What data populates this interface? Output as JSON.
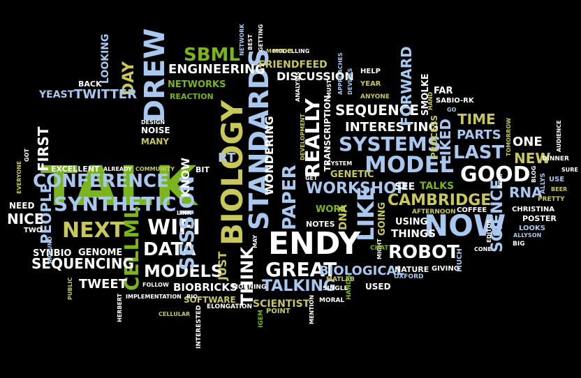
{
  "colors": {
    "background": "#000000",
    "green": "#7ab51d",
    "light_blue": "#a9c8f0",
    "white": "#ffffff",
    "olive": "#c8c85a"
  },
  "words": [
    {
      "id": "talk",
      "text": "TALK",
      "color": "#7ab51d"
    },
    {
      "id": "biology",
      "text": "BIOLOGY",
      "color": "#c8c85a"
    },
    {
      "id": "standards",
      "text": "STANDARDS",
      "color": "#a9c8f0"
    },
    {
      "id": "drew",
      "text": "DREW",
      "color": "#a9c8f0"
    },
    {
      "id": "endy",
      "text": "ENDY",
      "color": "#ffffff"
    },
    {
      "id": "now",
      "text": "NOW",
      "color": "#a9c8f0"
    },
    {
      "id": "model",
      "text": "MODEL",
      "color": "#a9c8f0"
    },
    {
      "id": "like",
      "text": "LIKE",
      "color": "#a9c8f0"
    },
    {
      "id": "synthetic",
      "text": "SYNTHETIC",
      "color": "#a9c8f0"
    },
    {
      "id": "conference",
      "text": "CONFERENCE",
      "color": "#a9c8f0"
    },
    {
      "id": "next",
      "text": "NEXT",
      "color": "#c8c85a"
    },
    {
      "id": "wifi",
      "text": "WIFI",
      "color": "#ffffff"
    },
    {
      "id": "data",
      "text": "DATA",
      "color": "#ffffff"
    },
    {
      "id": "systems",
      "text": "SYSTEMS",
      "color": "#a9c8f0"
    },
    {
      "id": "good",
      "text": "GOOD",
      "color": "#ffffff"
    },
    {
      "id": "robot",
      "text": "ROBOT",
      "color": "#ffffff"
    },
    {
      "id": "models",
      "text": "MODELS",
      "color": "#ffffff"
    },
    {
      "id": "great",
      "text": "GREAT",
      "color": "#ffffff"
    },
    {
      "id": "session",
      "text": "SESSION",
      "color": "#a9c8f0"
    },
    {
      "id": "cellml",
      "text": "CELLML",
      "color": "#7ab51d"
    },
    {
      "id": "paper",
      "text": "PAPER",
      "color": "#a9c8f0"
    },
    {
      "id": "really",
      "text": "REALLY",
      "color": "#ffffff"
    },
    {
      "id": "sbml",
      "text": "SBML",
      "color": "#7ab51d"
    },
    {
      "id": "engineering",
      "text": "ENGINEERING",
      "color": "#ffffff"
    },
    {
      "id": "workshop",
      "text": "WORKSHOP",
      "color": "#a9c8f0"
    },
    {
      "id": "sequencing",
      "text": "SEQUENCING",
      "color": "#ffffff"
    },
    {
      "id": "cambridge",
      "text": "CAMBRIDGE",
      "color": "#c8c85a"
    },
    {
      "id": "interesting",
      "text": "INTERESTING",
      "color": "#ffffff"
    },
    {
      "id": "sequence",
      "text": "SEQUENCE",
      "color": "#ffffff"
    },
    {
      "id": "talking",
      "text": "TALKING",
      "color": "#a9c8f0"
    },
    {
      "id": "biological",
      "text": "BIOLOGICAL",
      "color": "#a9c8f0"
    },
    {
      "id": "think",
      "text": "THINK",
      "color": "#ffffff"
    },
    {
      "id": "tweet",
      "text": "TWEET",
      "color": "#ffffff"
    },
    {
      "id": "time",
      "text": "TIME",
      "color": "#c8c85a"
    },
    {
      "id": "last",
      "text": "LAST",
      "color": "#a9c8f0"
    },
    {
      "id": "parts",
      "text": "PARTS",
      "color": "#a9c8f0"
    },
    {
      "id": "one",
      "text": "ONE",
      "color": "#ffffff"
    },
    {
      "id": "new",
      "text": "NEW",
      "color": "#c8c85a"
    },
    {
      "id": "rna",
      "text": "RNA",
      "color": "#a9c8f0"
    },
    {
      "id": "science",
      "text": "SCIENCE",
      "color": "#a9c8f0"
    },
    {
      "id": "liked",
      "text": "LIKED",
      "color": "#a9c8f0"
    },
    {
      "id": "forward",
      "text": "FORWARD",
      "color": "#a9c8f0"
    },
    {
      "id": "day",
      "text": "DAY",
      "color": "#c8c85a"
    },
    {
      "id": "twitter",
      "text": "TWITTER",
      "color": "#a9c8f0"
    },
    {
      "id": "yeast",
      "text": "YEAST",
      "color": "#a9c8f0"
    },
    {
      "id": "people",
      "text": "PEOPLE",
      "color": "#a9c8f0"
    },
    {
      "id": "first",
      "text": "FIRST",
      "color": "#ffffff"
    },
    {
      "id": "nice",
      "text": "NICE",
      "color": "#ffffff"
    },
    {
      "id": "wondering",
      "text": "WONDERING",
      "color": "#ffffff"
    },
    {
      "id": "discussion",
      "text": "DISCUSSION",
      "color": "#ffffff"
    },
    {
      "id": "friendfeed",
      "text": "FRIENDFEED",
      "color": "#c8c85a"
    },
    {
      "id": "networks",
      "text": "NETWORKS",
      "color": "#7ab51d"
    },
    {
      "id": "excellent",
      "text": "EXCELLENT",
      "color": "#ffffff"
    },
    {
      "id": "genome",
      "text": "GENOME",
      "color": "#ffffff"
    },
    {
      "id": "synbio",
      "text": "SYNBIO",
      "color": "#ffffff"
    },
    {
      "id": "scientist",
      "text": "SCIENTIST",
      "color": "#c8c85a"
    },
    {
      "id": "software",
      "text": "SOFTWARE",
      "color": "#c8c85a"
    },
    {
      "id": "biobricks",
      "text": "BIOBRICKS",
      "color": "#ffffff"
    },
    {
      "id": "just",
      "text": "JUST",
      "color": "#c8c85a"
    },
    {
      "id": "know",
      "text": "KNOW",
      "color": "#ffffff"
    },
    {
      "id": "rt",
      "text": "RT",
      "color": "#a9c8f0"
    },
    {
      "id": "see",
      "text": "SEE",
      "color": "#ffffff"
    },
    {
      "id": "talks",
      "text": "TALKS",
      "color": "#7ab51d"
    },
    {
      "id": "genetic",
      "text": "GENETIC",
      "color": "#c8c85a"
    },
    {
      "id": "work",
      "text": "WORK",
      "color": "#7ab51d"
    },
    {
      "id": "using",
      "text": "USING",
      "color": "#ffffff"
    },
    {
      "id": "things",
      "text": "THINGS",
      "color": "#ffffff"
    },
    {
      "id": "going",
      "text": "GOING",
      "color": "#c8c85a"
    },
    {
      "id": "dna",
      "text": "DNA",
      "color": "#c8c85a"
    },
    {
      "id": "notes",
      "text": "NOTES",
      "color": "#ffffff"
    },
    {
      "id": "transcription",
      "text": "TRANSCRIPTION",
      "color": "#ffffff"
    },
    {
      "id": "process",
      "text": "PROCESS",
      "color": "#c8c85a"
    },
    {
      "id": "smolke",
      "text": "SMOLKE",
      "color": "#ffffff"
    },
    {
      "id": "far",
      "text": "FAR",
      "color": "#ffffff"
    },
    {
      "id": "looking",
      "text": "LOOKING",
      "color": "#a9c8f0"
    },
    {
      "id": "back",
      "text": "BACK",
      "color": "#ffffff"
    },
    {
      "id": "reaction",
      "text": "REACTION",
      "color": "#7ab51d"
    },
    {
      "id": "noise",
      "text": "NOISE",
      "color": "#ffffff"
    },
    {
      "id": "many",
      "text": "MANY",
      "color": "#c8c85a"
    },
    {
      "id": "design",
      "text": "DESIGN",
      "color": "#ffffff"
    },
    {
      "id": "bit",
      "text": "BIT",
      "color": "#ffffff"
    },
    {
      "id": "community",
      "text": "COMMUNITY",
      "color": "#c8c85a"
    },
    {
      "id": "already",
      "text": "ALREADY",
      "color": "#ffffff"
    },
    {
      "id": "need",
      "text": "NEED",
      "color": "#ffffff"
    },
    {
      "id": "two",
      "text": "TWO",
      "color": "#ffffff"
    },
    {
      "id": "public",
      "text": "PUBLIC",
      "color": "#c8c85a"
    },
    {
      "id": "follow",
      "text": "FOLLOW",
      "color": "#ffffff"
    },
    {
      "id": "bio",
      "text": "BIO",
      "color": "#ffffff"
    },
    {
      "id": "implementation",
      "text": "IMPLEMENTATION",
      "color": "#ffffff"
    },
    {
      "id": "herbert",
      "text": "HERBERT",
      "color": "#ffffff"
    },
    {
      "id": "cellular",
      "text": "CELLULAR",
      "color": "#c8c85a"
    },
    {
      "id": "interested",
      "text": "INTERESTED",
      "color": "#ffffff"
    },
    {
      "id": "elongation",
      "text": "ELONGATION",
      "color": "#ffffff"
    },
    {
      "id": "morning",
      "text": "MORNING",
      "color": "#ffffff"
    },
    {
      "id": "link",
      "text": "LINK",
      "color": "#ffffff"
    },
    {
      "id": "may",
      "text": "MAY",
      "color": "#ffffff"
    },
    {
      "id": "igem",
      "text": "IGEM",
      "color": "#7ab51d"
    },
    {
      "id": "point",
      "text": "POINT",
      "color": "#c8c85a"
    },
    {
      "id": "mention",
      "text": "MENTION",
      "color": "#ffffff"
    },
    {
      "id": "moral",
      "text": "MORAL",
      "color": "#ffffff"
    },
    {
      "id": "single",
      "text": "SINGLE",
      "color": "#ffffff"
    },
    {
      "id": "matlab",
      "text": "MATLAB",
      "color": "#c8c85a"
    },
    {
      "id": "hands",
      "text": "HANDS",
      "color": "#7ab51d"
    },
    {
      "id": "used",
      "text": "USED",
      "color": "#ffffff"
    },
    {
      "id": "oxford",
      "text": "OXFORD",
      "color": "#a9c8f0"
    },
    {
      "id": "nature",
      "text": "NATURE",
      "color": "#ffffff"
    },
    {
      "id": "giving",
      "text": "GIVING",
      "color": "#ffffff"
    },
    {
      "id": "much",
      "text": "MUCH",
      "color": "#a9c8f0"
    },
    {
      "id": "might",
      "text": "MIGHT",
      "color": "#ffffff"
    },
    {
      "id": "chat",
      "text": "CHAT",
      "color": "#7ab51d"
    },
    {
      "id": "afternoon",
      "text": "AFTERNOON",
      "color": "#c8c85a"
    },
    {
      "id": "coffee",
      "text": "COFFEE",
      "color": "#ffffff"
    },
    {
      "id": "editor",
      "text": "EDITOR",
      "color": "#ffffff"
    },
    {
      "id": "cone",
      "text": "CONE",
      "color": "#ffffff"
    },
    {
      "id": "poster",
      "text": "POSTER",
      "color": "#ffffff"
    },
    {
      "id": "looks",
      "text": "LOOKS",
      "color": "#a9c8f0"
    },
    {
      "id": "allyson",
      "text": "ALLYSON",
      "color": "#a9c8f0"
    },
    {
      "id": "big",
      "text": "BIG",
      "color": "#ffffff"
    },
    {
      "id": "christina",
      "text": "CHRISTINA",
      "color": "#ffffff"
    },
    {
      "id": "pretty",
      "text": "PRETTY",
      "color": "#c8c85a"
    },
    {
      "id": "beer",
      "text": "BEER",
      "color": "#c8c85a"
    },
    {
      "id": "use",
      "text": "USE",
      "color": "#a9c8f0"
    },
    {
      "id": "sure",
      "text": "SURE",
      "color": "#ffffff"
    },
    {
      "id": "dinner",
      "text": "DINNER",
      "color": "#ffffff"
    },
    {
      "id": "allys",
      "text": "ALLYS",
      "color": "#a9c8f0"
    },
    {
      "id": "blog",
      "text": "BLOG",
      "color": "#ffffff"
    },
    {
      "id": "wiki",
      "text": "WIKI",
      "color": "#ffffff"
    },
    {
      "id": "audience",
      "text": "AUDIENCE",
      "color": "#ffffff"
    },
    {
      "id": "tomorrow",
      "text": "TOMORROW",
      "color": "#c8c85a"
    },
    {
      "id": "sabio_rk",
      "text": "SABIO-RK",
      "color": "#ffffff"
    },
    {
      "id": "go",
      "text": "GO",
      "color": "#a9c8f0"
    },
    {
      "id": "hand",
      "text": "HAND",
      "color": "#c8c85a"
    },
    {
      "id": "help",
      "text": "HELP",
      "color": "#ffffff"
    },
    {
      "id": "year",
      "text": "YEAR",
      "color": "#c8c85a"
    },
    {
      "id": "anyone",
      "text": "ANYONE",
      "color": "#c8c85a"
    },
    {
      "id": "devices",
      "text": "DEVICES",
      "color": "#a9c8f0"
    },
    {
      "id": "approaches",
      "text": "APPROACHES",
      "color": "#a9c8f0"
    },
    {
      "id": "must",
      "text": "MUST",
      "color": "#ffffff"
    },
    {
      "id": "modelling",
      "text": "MODELLING",
      "color": "#ffffff"
    },
    {
      "id": "months",
      "text": "MONTHS",
      "color": "#c8c85a"
    },
    {
      "id": "getting",
      "text": "GETTING",
      "color": "#ffffff"
    },
    {
      "id": "best",
      "text": "BEST",
      "color": "#ffffff"
    },
    {
      "id": "network",
      "text": "NETWORK",
      "color": "#a9c8f0"
    },
    {
      "id": "analysis",
      "text": "ANALYSIS",
      "color": "#ffffff"
    },
    {
      "id": "development",
      "text": "DEVELOPMENT",
      "color": "#c8c85a"
    },
    {
      "id": "get",
      "text": "GET",
      "color": "#ffffff"
    },
    {
      "id": "system",
      "text": "SYSTEM",
      "color": "#ffffff"
    },
    {
      "id": "around",
      "text": "AROUND",
      "color": "#a9c8f0"
    },
    {
      "id": "got",
      "text": "GOT",
      "color": "#ffffff"
    },
    {
      "id": "everyone",
      "text": "EVERYONE",
      "color": "#c8c85a"
    }
  ]
}
